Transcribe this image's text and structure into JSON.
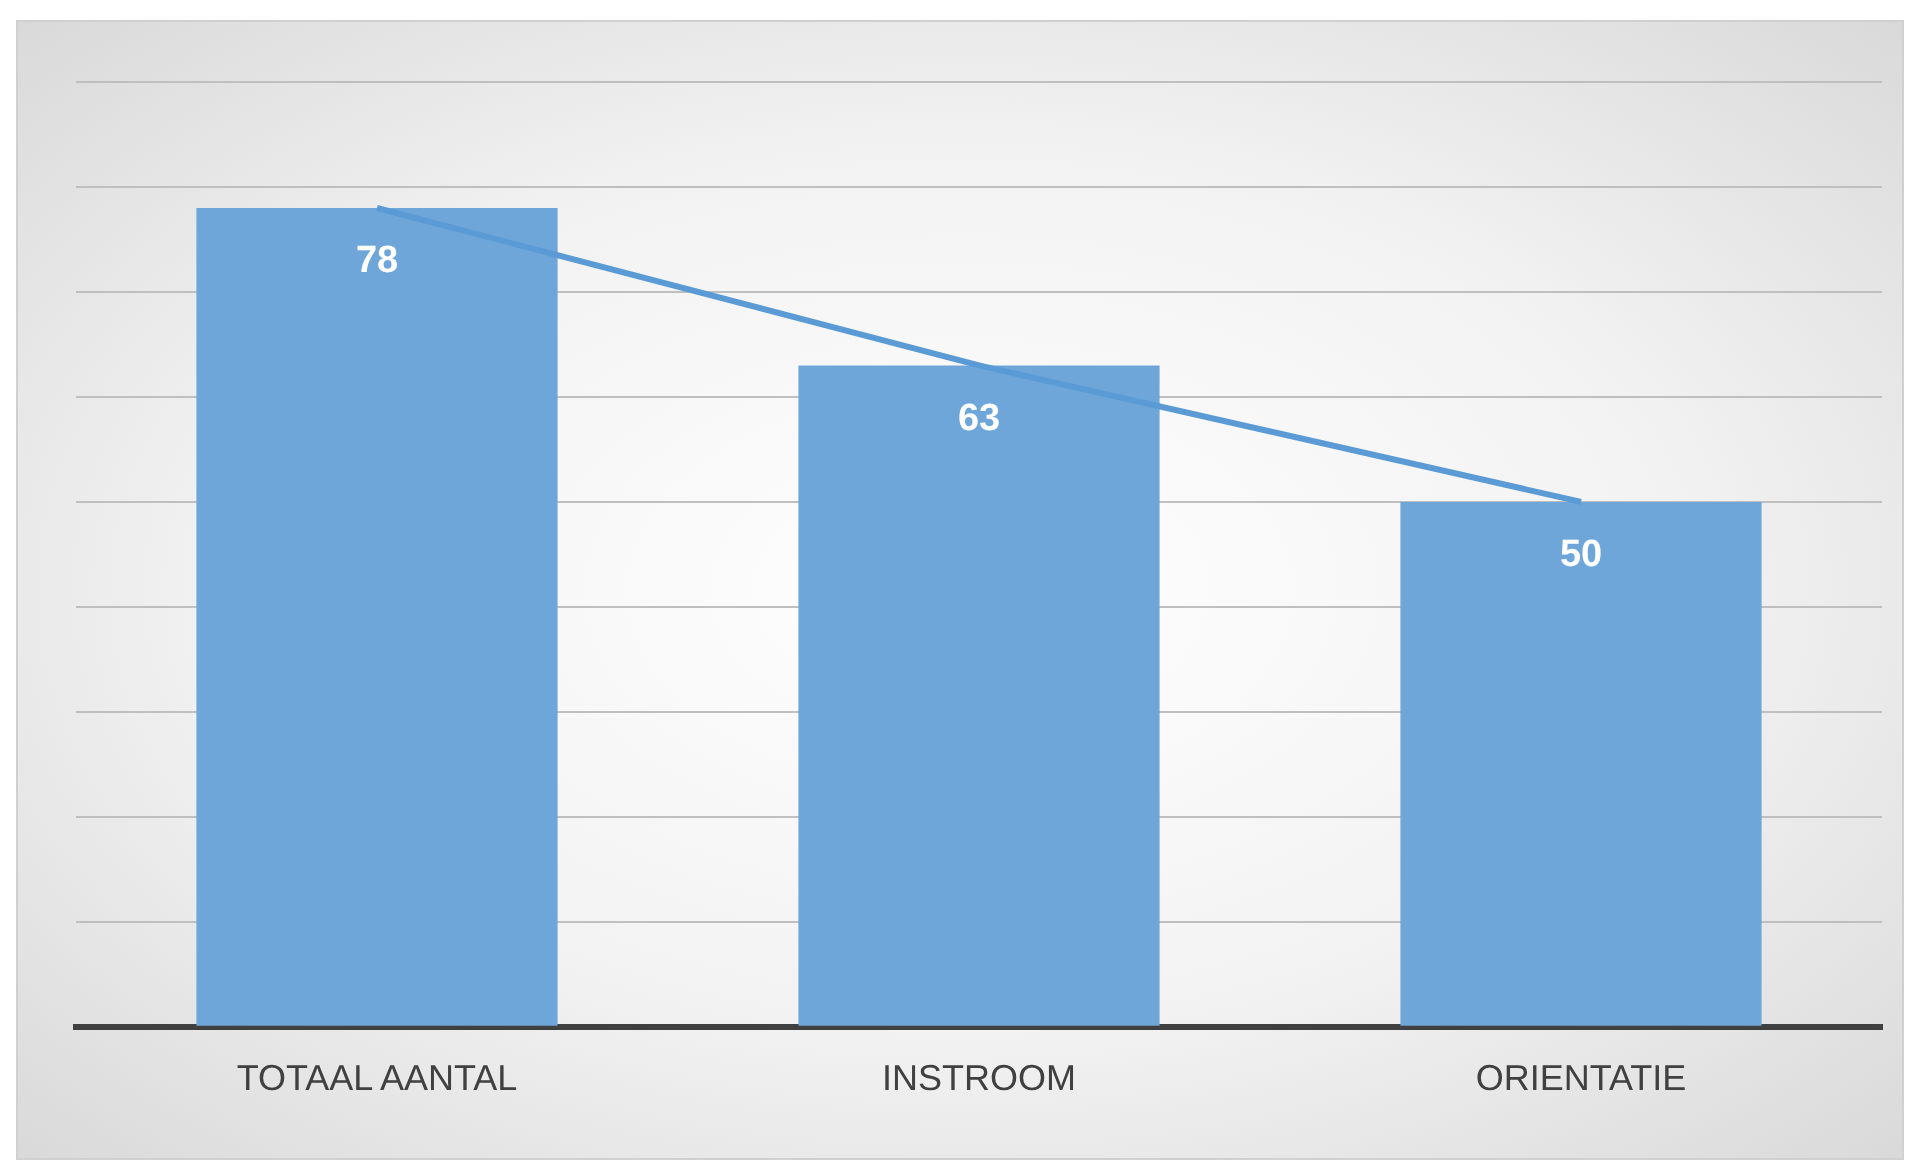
{
  "chart_data": {
    "type": "bar",
    "categories": [
      "TOTAAL AANTAL",
      "INSTROOM",
      "ORIENTATIE"
    ],
    "series": [
      {
        "color": "#6fa6da",
        "values": [
          78,
          63,
          50
        ],
        "value_labels": [
          "78",
          "63",
          "50"
        ]
      },
      {
        "type": "line",
        "color": "#5b9bd5",
        "values": [
          78,
          63,
          50
        ]
      }
    ],
    "ylim": [
      0,
      90
    ],
    "yticks": [
      {
        "value": 0,
        "label": null
      },
      {
        "value": 10,
        "label": null
      },
      {
        "value": 20,
        "label": null
      },
      {
        "value": 30,
        "label": null
      },
      {
        "value": 40,
        "label": null
      },
      {
        "value": 50,
        "label": null
      },
      {
        "value": 60,
        "label": null
      },
      {
        "value": 70,
        "label": null
      },
      {
        "value": 80,
        "label": null
      },
      {
        "value": 90,
        "label": null
      }
    ],
    "grid": "y",
    "tick_labels": "x",
    "legend": false,
    "marker": "none"
  }
}
